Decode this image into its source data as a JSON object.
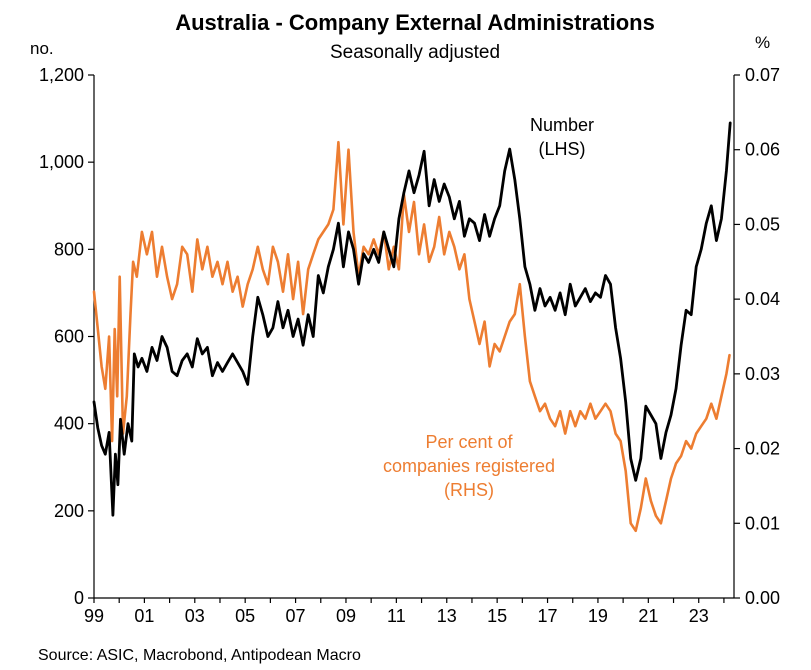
{
  "colors": {
    "number_line": "#000000",
    "percent_line": "#ED7D31",
    "background": "#ffffff"
  },
  "chart_data": {
    "type": "line",
    "title": "Australia - Company External Administrations",
    "subtitle": "Seasonally adjusted",
    "source": "Source: ASIC, Macrobond, Antipodean Macro",
    "y_left": {
      "label": "no.",
      "range": [
        0,
        1200
      ],
      "ticks": [
        0,
        200,
        400,
        600,
        800,
        1000,
        1200
      ],
      "tick_labels": [
        "0",
        "200",
        "400",
        "600",
        "800",
        "1,000",
        "1,200"
      ]
    },
    "y_right": {
      "label": "%",
      "range": [
        0,
        0.07
      ],
      "ticks": [
        0,
        0.01,
        0.02,
        0.03,
        0.04,
        0.05,
        0.06,
        0.07
      ],
      "tick_labels": [
        "0.00",
        "0.01",
        "0.02",
        "0.03",
        "0.04",
        "0.05",
        "0.06",
        "0.07"
      ]
    },
    "x_axis": {
      "range": [
        1999,
        2024.4
      ],
      "ticks": [
        1999,
        2001,
        2003,
        2005,
        2007,
        2009,
        2011,
        2013,
        2015,
        2017,
        2019,
        2021,
        2023
      ],
      "tick_labels": [
        "99",
        "01",
        "03",
        "05",
        "07",
        "09",
        "11",
        "13",
        "15",
        "17",
        "19",
        "21",
        "23"
      ]
    },
    "annotations": {
      "number": [
        "Number",
        "(LHS)"
      ],
      "percent": [
        "Per cent of",
        "companies registered",
        "(RHS)"
      ]
    },
    "series": [
      {
        "name": "Number (LHS)",
        "axis": "left",
        "points": [
          [
            1999.0,
            450
          ],
          [
            1999.15,
            390
          ],
          [
            1999.3,
            350
          ],
          [
            1999.45,
            330
          ],
          [
            1999.6,
            380
          ],
          [
            1999.75,
            190
          ],
          [
            1999.85,
            330
          ],
          [
            1999.95,
            260
          ],
          [
            2000.05,
            410
          ],
          [
            2000.2,
            330
          ],
          [
            2000.35,
            400
          ],
          [
            2000.5,
            360
          ],
          [
            2000.6,
            560
          ],
          [
            2000.75,
            530
          ],
          [
            2000.9,
            550
          ],
          [
            2001.1,
            520
          ],
          [
            2001.3,
            575
          ],
          [
            2001.5,
            545
          ],
          [
            2001.7,
            600
          ],
          [
            2001.9,
            575
          ],
          [
            2002.1,
            520
          ],
          [
            2002.3,
            510
          ],
          [
            2002.5,
            545
          ],
          [
            2002.7,
            560
          ],
          [
            2002.9,
            530
          ],
          [
            2003.1,
            595
          ],
          [
            2003.3,
            560
          ],
          [
            2003.5,
            575
          ],
          [
            2003.7,
            510
          ],
          [
            2003.9,
            540
          ],
          [
            2004.1,
            520
          ],
          [
            2004.3,
            540
          ],
          [
            2004.5,
            560
          ],
          [
            2004.7,
            540
          ],
          [
            2004.9,
            520
          ],
          [
            2005.1,
            490
          ],
          [
            2005.3,
            600
          ],
          [
            2005.5,
            690
          ],
          [
            2005.7,
            650
          ],
          [
            2005.9,
            600
          ],
          [
            2006.1,
            620
          ],
          [
            2006.3,
            680
          ],
          [
            2006.5,
            620
          ],
          [
            2006.7,
            660
          ],
          [
            2006.9,
            600
          ],
          [
            2007.1,
            640
          ],
          [
            2007.3,
            580
          ],
          [
            2007.5,
            650
          ],
          [
            2007.7,
            600
          ],
          [
            2007.9,
            740
          ],
          [
            2008.1,
            700
          ],
          [
            2008.3,
            760
          ],
          [
            2008.5,
            800
          ],
          [
            2008.7,
            860
          ],
          [
            2008.9,
            760
          ],
          [
            2009.1,
            840
          ],
          [
            2009.3,
            800
          ],
          [
            2009.5,
            720
          ],
          [
            2009.7,
            790
          ],
          [
            2009.9,
            770
          ],
          [
            2010.1,
            800
          ],
          [
            2010.3,
            770
          ],
          [
            2010.5,
            840
          ],
          [
            2010.7,
            800
          ],
          [
            2010.9,
            760
          ],
          [
            2011.1,
            870
          ],
          [
            2011.3,
            930
          ],
          [
            2011.5,
            980
          ],
          [
            2011.7,
            930
          ],
          [
            2011.9,
            970
          ],
          [
            2012.1,
            1025
          ],
          [
            2012.3,
            900
          ],
          [
            2012.5,
            960
          ],
          [
            2012.7,
            910
          ],
          [
            2012.9,
            950
          ],
          [
            2013.1,
            920
          ],
          [
            2013.3,
            870
          ],
          [
            2013.5,
            910
          ],
          [
            2013.7,
            830
          ],
          [
            2013.9,
            870
          ],
          [
            2014.1,
            860
          ],
          [
            2014.3,
            820
          ],
          [
            2014.5,
            880
          ],
          [
            2014.7,
            830
          ],
          [
            2014.9,
            870
          ],
          [
            2015.1,
            900
          ],
          [
            2015.3,
            980
          ],
          [
            2015.5,
            1030
          ],
          [
            2015.7,
            960
          ],
          [
            2015.9,
            870
          ],
          [
            2016.1,
            760
          ],
          [
            2016.3,
            720
          ],
          [
            2016.5,
            660
          ],
          [
            2016.7,
            710
          ],
          [
            2016.9,
            670
          ],
          [
            2017.1,
            690
          ],
          [
            2017.3,
            660
          ],
          [
            2017.5,
            700
          ],
          [
            2017.7,
            650
          ],
          [
            2017.9,
            720
          ],
          [
            2018.1,
            670
          ],
          [
            2018.3,
            690
          ],
          [
            2018.5,
            710
          ],
          [
            2018.7,
            680
          ],
          [
            2018.9,
            700
          ],
          [
            2019.1,
            690
          ],
          [
            2019.3,
            740
          ],
          [
            2019.5,
            720
          ],
          [
            2019.7,
            620
          ],
          [
            2019.9,
            550
          ],
          [
            2020.1,
            450
          ],
          [
            2020.3,
            320
          ],
          [
            2020.5,
            270
          ],
          [
            2020.7,
            320
          ],
          [
            2020.9,
            440
          ],
          [
            2021.1,
            420
          ],
          [
            2021.3,
            400
          ],
          [
            2021.5,
            320
          ],
          [
            2021.7,
            380
          ],
          [
            2021.9,
            420
          ],
          [
            2022.1,
            480
          ],
          [
            2022.3,
            580
          ],
          [
            2022.5,
            660
          ],
          [
            2022.7,
            650
          ],
          [
            2022.9,
            760
          ],
          [
            2023.1,
            800
          ],
          [
            2023.3,
            860
          ],
          [
            2023.5,
            900
          ],
          [
            2023.7,
            820
          ],
          [
            2023.9,
            870
          ],
          [
            2024.1,
            980
          ],
          [
            2024.25,
            1090
          ]
        ]
      },
      {
        "name": "Per cent of companies registered (RHS)",
        "axis": "right",
        "points": [
          [
            1999.0,
            0.041
          ],
          [
            1999.15,
            0.036
          ],
          [
            1999.3,
            0.031
          ],
          [
            1999.45,
            0.028
          ],
          [
            1999.6,
            0.035
          ],
          [
            1999.72,
            0.021
          ],
          [
            1999.82,
            0.036
          ],
          [
            1999.92,
            0.027
          ],
          [
            2000.02,
            0.043
          ],
          [
            2000.15,
            0.022
          ],
          [
            2000.3,
            0.027
          ],
          [
            2000.45,
            0.038
          ],
          [
            2000.55,
            0.045
          ],
          [
            2000.7,
            0.043
          ],
          [
            2000.9,
            0.049
          ],
          [
            2001.1,
            0.046
          ],
          [
            2001.3,
            0.049
          ],
          [
            2001.5,
            0.043
          ],
          [
            2001.7,
            0.047
          ],
          [
            2001.9,
            0.043
          ],
          [
            2002.1,
            0.04
          ],
          [
            2002.3,
            0.042
          ],
          [
            2002.5,
            0.047
          ],
          [
            2002.7,
            0.046
          ],
          [
            2002.9,
            0.041
          ],
          [
            2003.1,
            0.048
          ],
          [
            2003.3,
            0.044
          ],
          [
            2003.5,
            0.047
          ],
          [
            2003.7,
            0.043
          ],
          [
            2003.9,
            0.045
          ],
          [
            2004.1,
            0.042
          ],
          [
            2004.3,
            0.045
          ],
          [
            2004.5,
            0.041
          ],
          [
            2004.7,
            0.043
          ],
          [
            2004.9,
            0.039
          ],
          [
            2005.1,
            0.042
          ],
          [
            2005.3,
            0.044
          ],
          [
            2005.5,
            0.047
          ],
          [
            2005.7,
            0.044
          ],
          [
            2005.9,
            0.042
          ],
          [
            2006.1,
            0.047
          ],
          [
            2006.3,
            0.045
          ],
          [
            2006.5,
            0.041
          ],
          [
            2006.7,
            0.046
          ],
          [
            2006.9,
            0.04
          ],
          [
            2007.1,
            0.045
          ],
          [
            2007.3,
            0.038
          ],
          [
            2007.5,
            0.044
          ],
          [
            2007.7,
            0.046
          ],
          [
            2007.9,
            0.048
          ],
          [
            2008.1,
            0.049
          ],
          [
            2008.3,
            0.05
          ],
          [
            2008.5,
            0.052
          ],
          [
            2008.7,
            0.061
          ],
          [
            2008.9,
            0.05
          ],
          [
            2009.1,
            0.06
          ],
          [
            2009.3,
            0.049
          ],
          [
            2009.5,
            0.043
          ],
          [
            2009.7,
            0.047
          ],
          [
            2009.9,
            0.046
          ],
          [
            2010.1,
            0.048
          ],
          [
            2010.3,
            0.046
          ],
          [
            2010.5,
            0.049
          ],
          [
            2010.7,
            0.044
          ],
          [
            2010.9,
            0.047
          ],
          [
            2011.1,
            0.044
          ],
          [
            2011.3,
            0.054
          ],
          [
            2011.5,
            0.049
          ],
          [
            2011.7,
            0.053
          ],
          [
            2011.9,
            0.046
          ],
          [
            2012.1,
            0.05
          ],
          [
            2012.3,
            0.045
          ],
          [
            2012.5,
            0.047
          ],
          [
            2012.7,
            0.051
          ],
          [
            2012.9,
            0.046
          ],
          [
            2013.1,
            0.049
          ],
          [
            2013.3,
            0.047
          ],
          [
            2013.5,
            0.044
          ],
          [
            2013.7,
            0.046
          ],
          [
            2013.9,
            0.04
          ],
          [
            2014.1,
            0.037
          ],
          [
            2014.3,
            0.034
          ],
          [
            2014.5,
            0.037
          ],
          [
            2014.7,
            0.031
          ],
          [
            2014.9,
            0.034
          ],
          [
            2015.1,
            0.033
          ],
          [
            2015.3,
            0.035
          ],
          [
            2015.5,
            0.037
          ],
          [
            2015.7,
            0.038
          ],
          [
            2015.9,
            0.042
          ],
          [
            2016.1,
            0.035
          ],
          [
            2016.3,
            0.029
          ],
          [
            2016.5,
            0.027
          ],
          [
            2016.7,
            0.025
          ],
          [
            2016.9,
            0.026
          ],
          [
            2017.1,
            0.024
          ],
          [
            2017.3,
            0.023
          ],
          [
            2017.5,
            0.025
          ],
          [
            2017.7,
            0.022
          ],
          [
            2017.9,
            0.025
          ],
          [
            2018.1,
            0.023
          ],
          [
            2018.3,
            0.025
          ],
          [
            2018.5,
            0.024
          ],
          [
            2018.7,
            0.026
          ],
          [
            2018.9,
            0.024
          ],
          [
            2019.1,
            0.025
          ],
          [
            2019.3,
            0.026
          ],
          [
            2019.5,
            0.025
          ],
          [
            2019.7,
            0.022
          ],
          [
            2019.9,
            0.021
          ],
          [
            2020.1,
            0.017
          ],
          [
            2020.3,
            0.01
          ],
          [
            2020.5,
            0.009
          ],
          [
            2020.7,
            0.012
          ],
          [
            2020.9,
            0.016
          ],
          [
            2021.1,
            0.013
          ],
          [
            2021.3,
            0.011
          ],
          [
            2021.5,
            0.01
          ],
          [
            2021.7,
            0.013
          ],
          [
            2021.9,
            0.016
          ],
          [
            2022.1,
            0.018
          ],
          [
            2022.3,
            0.019
          ],
          [
            2022.5,
            0.021
          ],
          [
            2022.7,
            0.02
          ],
          [
            2022.9,
            0.022
          ],
          [
            2023.1,
            0.023
          ],
          [
            2023.3,
            0.024
          ],
          [
            2023.5,
            0.026
          ],
          [
            2023.7,
            0.024
          ],
          [
            2023.9,
            0.027
          ],
          [
            2024.1,
            0.03
          ],
          [
            2024.22,
            0.0325
          ]
        ]
      }
    ]
  }
}
